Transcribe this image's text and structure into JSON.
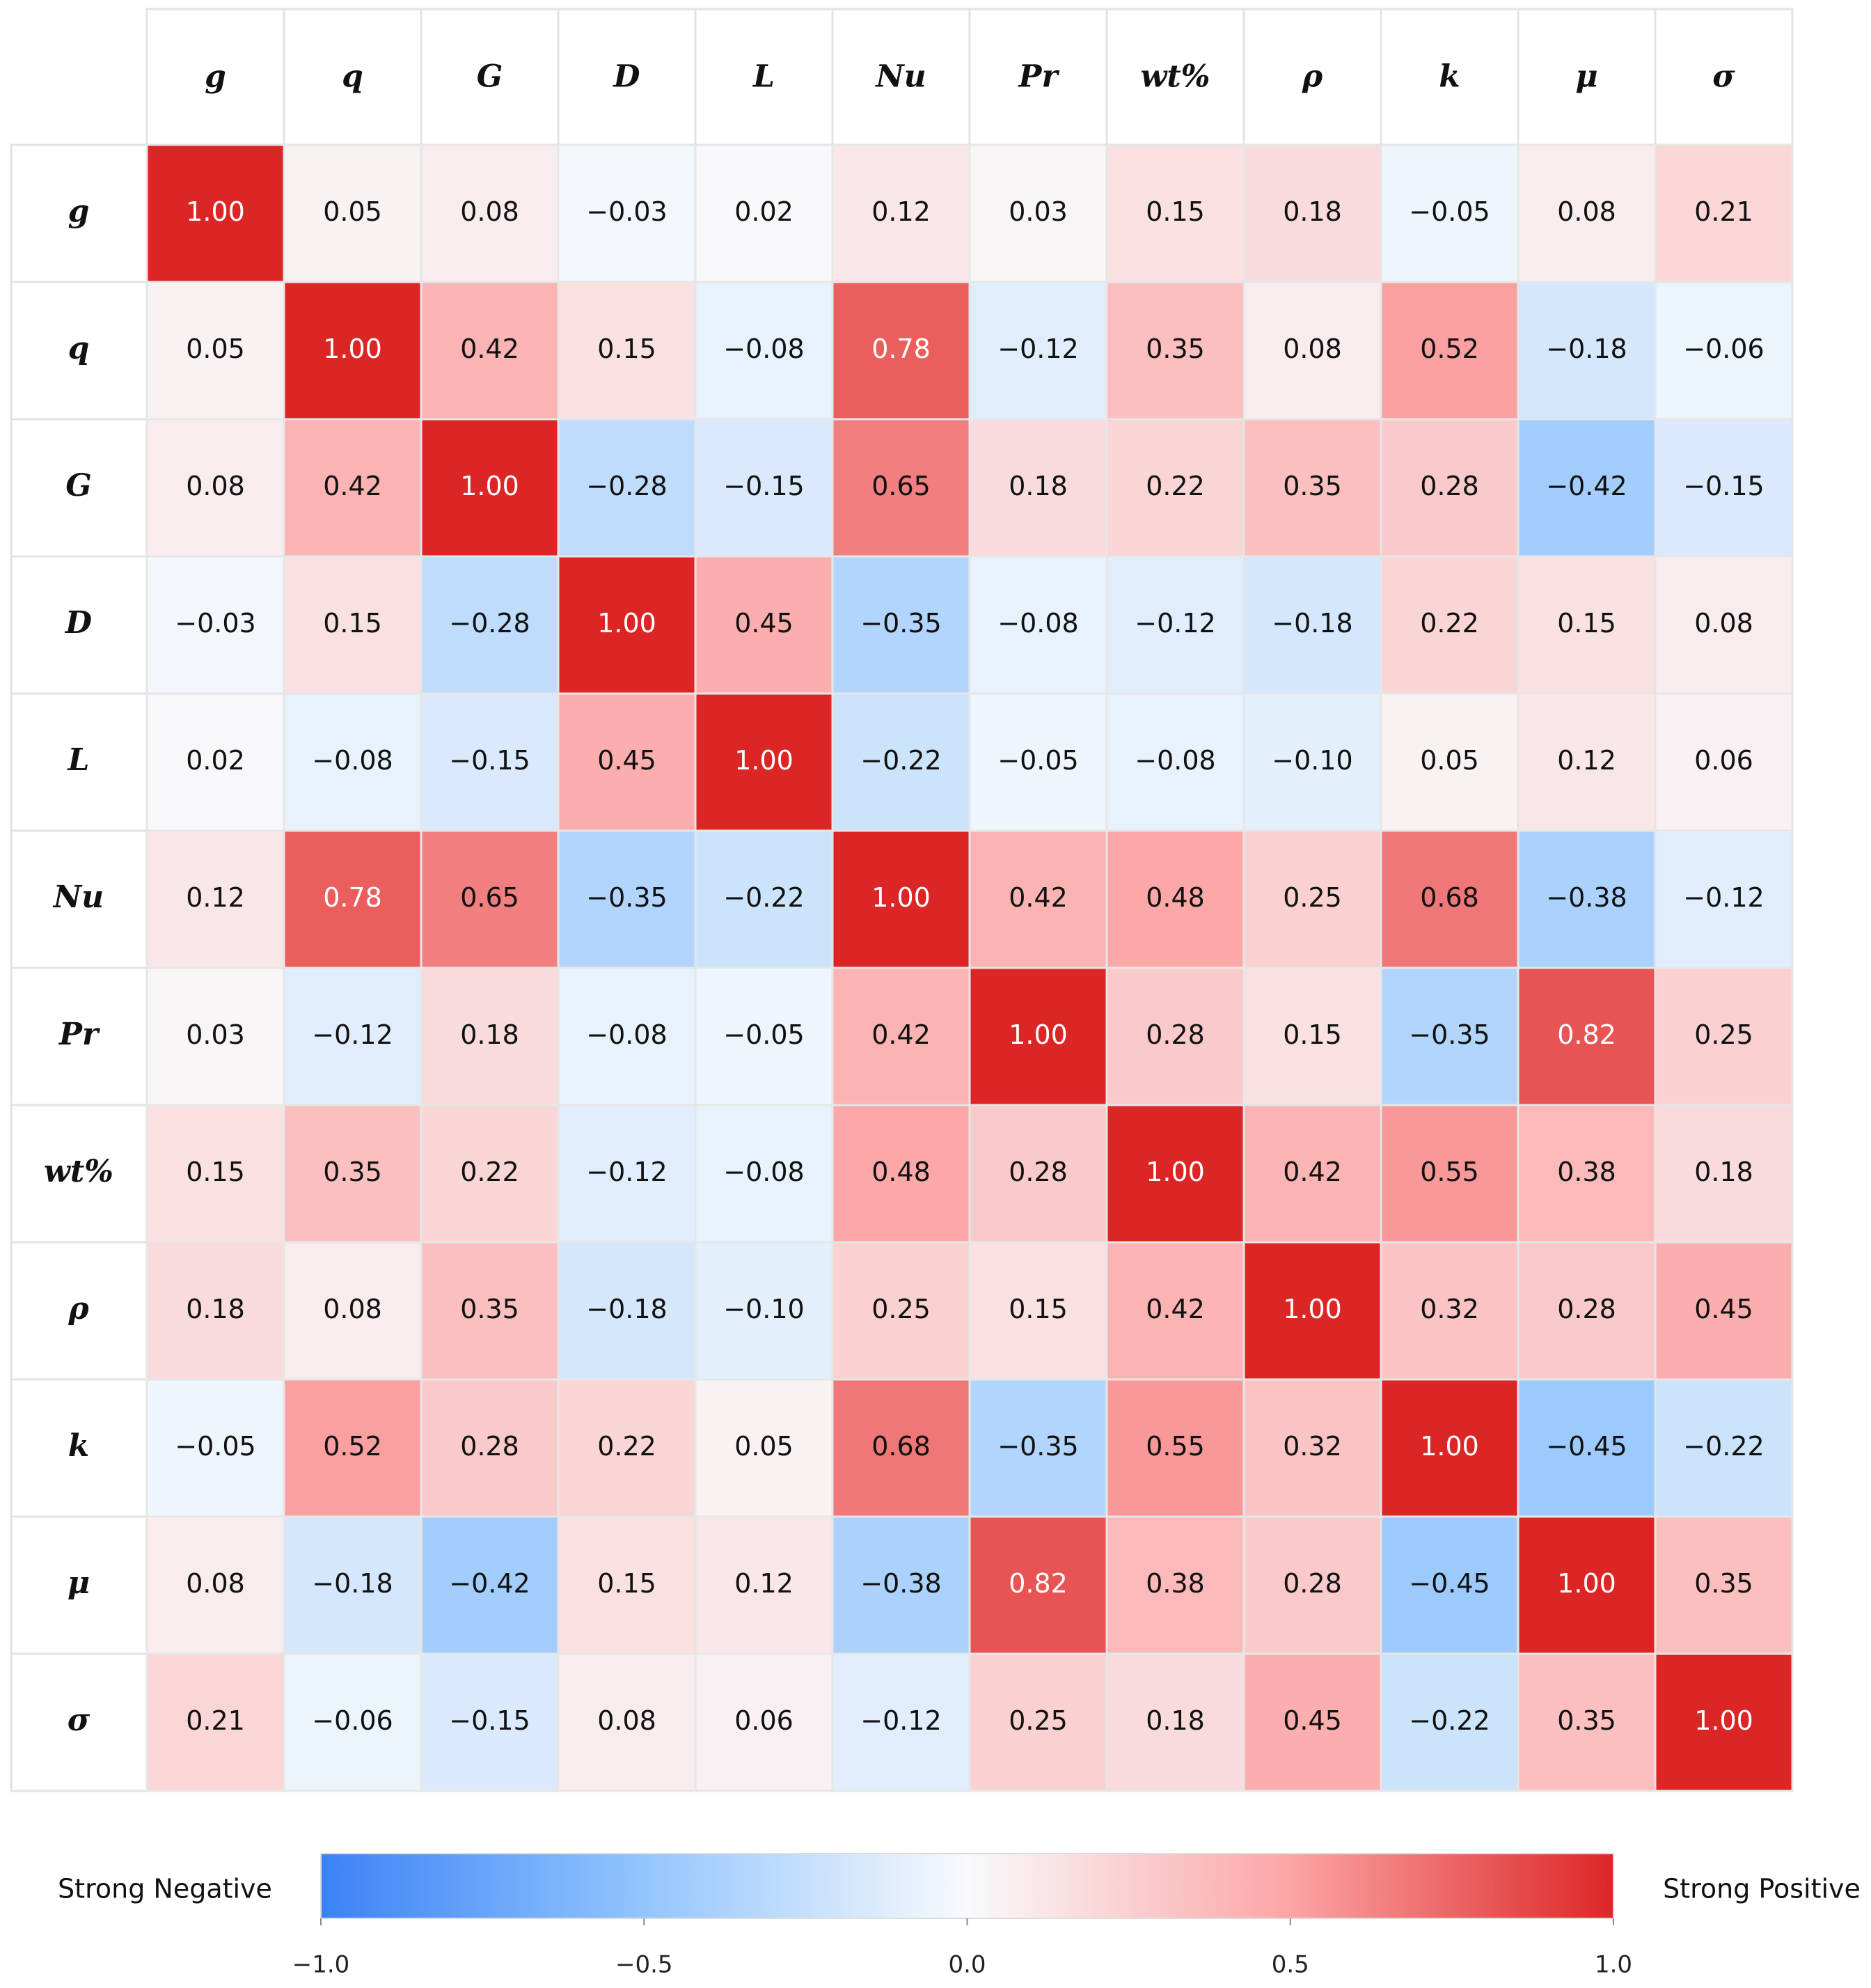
{
  "chart_data": {
    "type": "heatmap",
    "categories": [
      "g",
      "q",
      "G",
      "D",
      "L",
      "Nu",
      "Pr",
      "wt%",
      "ρ",
      "k",
      "μ",
      "σ"
    ],
    "values": [
      [
        1.0,
        0.05,
        0.08,
        -0.03,
        0.02,
        0.12,
        0.03,
        0.15,
        0.18,
        -0.05,
        0.08,
        0.21
      ],
      [
        0.05,
        1.0,
        0.42,
        0.15,
        -0.08,
        0.78,
        -0.12,
        0.35,
        0.08,
        0.52,
        -0.18,
        -0.06
      ],
      [
        0.08,
        0.42,
        1.0,
        -0.28,
        -0.15,
        0.65,
        0.18,
        0.22,
        0.35,
        0.28,
        -0.42,
        -0.15
      ],
      [
        -0.03,
        0.15,
        -0.28,
        1.0,
        0.45,
        -0.35,
        -0.08,
        -0.12,
        -0.18,
        0.22,
        0.15,
        0.08
      ],
      [
        0.02,
        -0.08,
        -0.15,
        0.45,
        1.0,
        -0.22,
        -0.05,
        -0.08,
        -0.1,
        0.05,
        0.12,
        0.06
      ],
      [
        0.12,
        0.78,
        0.65,
        -0.35,
        -0.22,
        1.0,
        0.42,
        0.48,
        0.25,
        0.68,
        -0.38,
        -0.12
      ],
      [
        0.03,
        -0.12,
        0.18,
        -0.08,
        -0.05,
        0.42,
        1.0,
        0.28,
        0.15,
        -0.35,
        0.82,
        0.25
      ],
      [
        0.15,
        0.35,
        0.22,
        -0.12,
        -0.08,
        0.48,
        0.28,
        1.0,
        0.42,
        0.55,
        0.38,
        0.18
      ],
      [
        0.18,
        0.08,
        0.35,
        -0.18,
        -0.1,
        0.25,
        0.15,
        0.42,
        1.0,
        0.32,
        0.28,
        0.45
      ],
      [
        -0.05,
        0.52,
        0.28,
        0.22,
        0.05,
        0.68,
        -0.35,
        0.55,
        0.32,
        1.0,
        -0.45,
        -0.22
      ],
      [
        0.08,
        -0.18,
        -0.42,
        0.15,
        0.12,
        -0.38,
        0.82,
        0.38,
        0.28,
        -0.45,
        1.0,
        0.35
      ],
      [
        0.21,
        -0.06,
        -0.15,
        0.08,
        0.06,
        -0.12,
        0.25,
        0.18,
        0.45,
        -0.22,
        0.35,
        1.0
      ]
    ],
    "value_labels": [
      [
        "1.00",
        "0.05",
        "0.08",
        "−0.03",
        "0.02",
        "0.12",
        "0.03",
        "0.15",
        "0.18",
        "−0.05",
        "0.08",
        "0.21"
      ],
      [
        "0.05",
        "1.00",
        "0.42",
        "0.15",
        "−0.08",
        "0.78",
        "−0.12",
        "0.35",
        "0.08",
        "0.52",
        "−0.18",
        "−0.06"
      ],
      [
        "0.08",
        "0.42",
        "1.00",
        "−0.28",
        "−0.15",
        "0.65",
        "0.18",
        "0.22",
        "0.35",
        "0.28",
        "−0.42",
        "−0.15"
      ],
      [
        "−0.03",
        "0.15",
        "−0.28",
        "1.00",
        "0.45",
        "−0.35",
        "−0.08",
        "−0.12",
        "−0.18",
        "0.22",
        "0.15",
        "0.08"
      ],
      [
        "0.02",
        "−0.08",
        "−0.15",
        "0.45",
        "1.00",
        "−0.22",
        "−0.05",
        "−0.08",
        "−0.10",
        "0.05",
        "0.12",
        "0.06"
      ],
      [
        "0.12",
        "0.78",
        "0.65",
        "−0.35",
        "−0.22",
        "1.00",
        "0.42",
        "0.48",
        "0.25",
        "0.68",
        "−0.38",
        "−0.12"
      ],
      [
        "0.03",
        "−0.12",
        "0.18",
        "−0.08",
        "−0.05",
        "0.42",
        "1.00",
        "0.28",
        "0.15",
        "−0.35",
        "0.82",
        "0.25"
      ],
      [
        "0.15",
        "0.35",
        "0.22",
        "−0.12",
        "−0.08",
        "0.48",
        "0.28",
        "1.00",
        "0.42",
        "0.55",
        "0.38",
        "0.18"
      ],
      [
        "0.18",
        "0.08",
        "0.35",
        "−0.18",
        "−0.10",
        "0.25",
        "0.15",
        "0.42",
        "1.00",
        "0.32",
        "0.28",
        "0.45"
      ],
      [
        "−0.05",
        "0.52",
        "0.28",
        "0.22",
        "0.05",
        "0.68",
        "−0.35",
        "0.55",
        "0.32",
        "1.00",
        "−0.45",
        "−0.22"
      ],
      [
        "0.08",
        "−0.18",
        "−0.42",
        "0.15",
        "0.12",
        "−0.38",
        "0.82",
        "0.38",
        "0.28",
        "−0.45",
        "1.00",
        "0.35"
      ],
      [
        "0.21",
        "−0.06",
        "−0.15",
        "0.08",
        "0.06",
        "−0.12",
        "0.25",
        "0.18",
        "0.45",
        "−0.22",
        "0.35",
        "1.00"
      ]
    ],
    "colors": [
      "#3b82f6",
      "#93c5fd",
      "#f8fafc",
      "#fca5a5",
      "#dc2626"
    ],
    "clim": [
      -1,
      1
    ],
    "cticks": [
      {
        "value": -1,
        "label": "−1.0"
      },
      {
        "value": -0.5,
        "label": "−0.5"
      },
      {
        "value": 0,
        "label": "0.0"
      },
      {
        "value": 0.5,
        "label": "0.5"
      },
      {
        "value": 1,
        "label": "1.0"
      }
    ],
    "colorbar_left_label": "Strong Negative",
    "colorbar_right_label": "Strong Positive"
  }
}
